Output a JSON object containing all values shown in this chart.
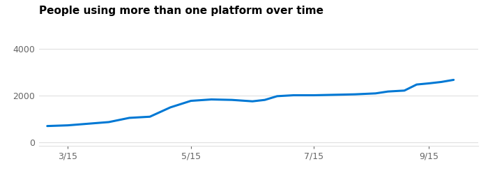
{
  "title": "People using more than one platform over time",
  "line_color": "#0078d4",
  "background_color": "#ffffff",
  "legend_label": "People using more than one platform",
  "yticks": [
    0,
    2000,
    4000
  ],
  "xtick_labels": [
    "3/15",
    "5/15",
    "7/15",
    "9/15"
  ],
  "ylim": [
    -150,
    4500
  ],
  "x": [
    0,
    0.5,
    1.0,
    1.5,
    2.0,
    2.5,
    3.0,
    3.5,
    4.0,
    4.5,
    5.0,
    5.3,
    5.6,
    6.0,
    6.5,
    7.0,
    7.5,
    8.0,
    8.3,
    8.7,
    9.0,
    9.3,
    9.6,
    9.9
  ],
  "y": [
    700,
    730,
    800,
    870,
    1050,
    1100,
    1500,
    1780,
    1840,
    1820,
    1760,
    1820,
    1980,
    2020,
    2020,
    2040,
    2060,
    2100,
    2180,
    2220,
    2480,
    2530,
    2590,
    2680
  ],
  "xtick_positions": [
    0.5,
    3.5,
    6.5,
    9.3
  ],
  "xlim": [
    -0.2,
    10.5
  ],
  "title_fontsize": 11,
  "tick_fontsize": 9,
  "legend_fontsize": 9,
  "line_width": 2.2,
  "grid_color": "#e0e0e0",
  "tick_color": "#666666"
}
